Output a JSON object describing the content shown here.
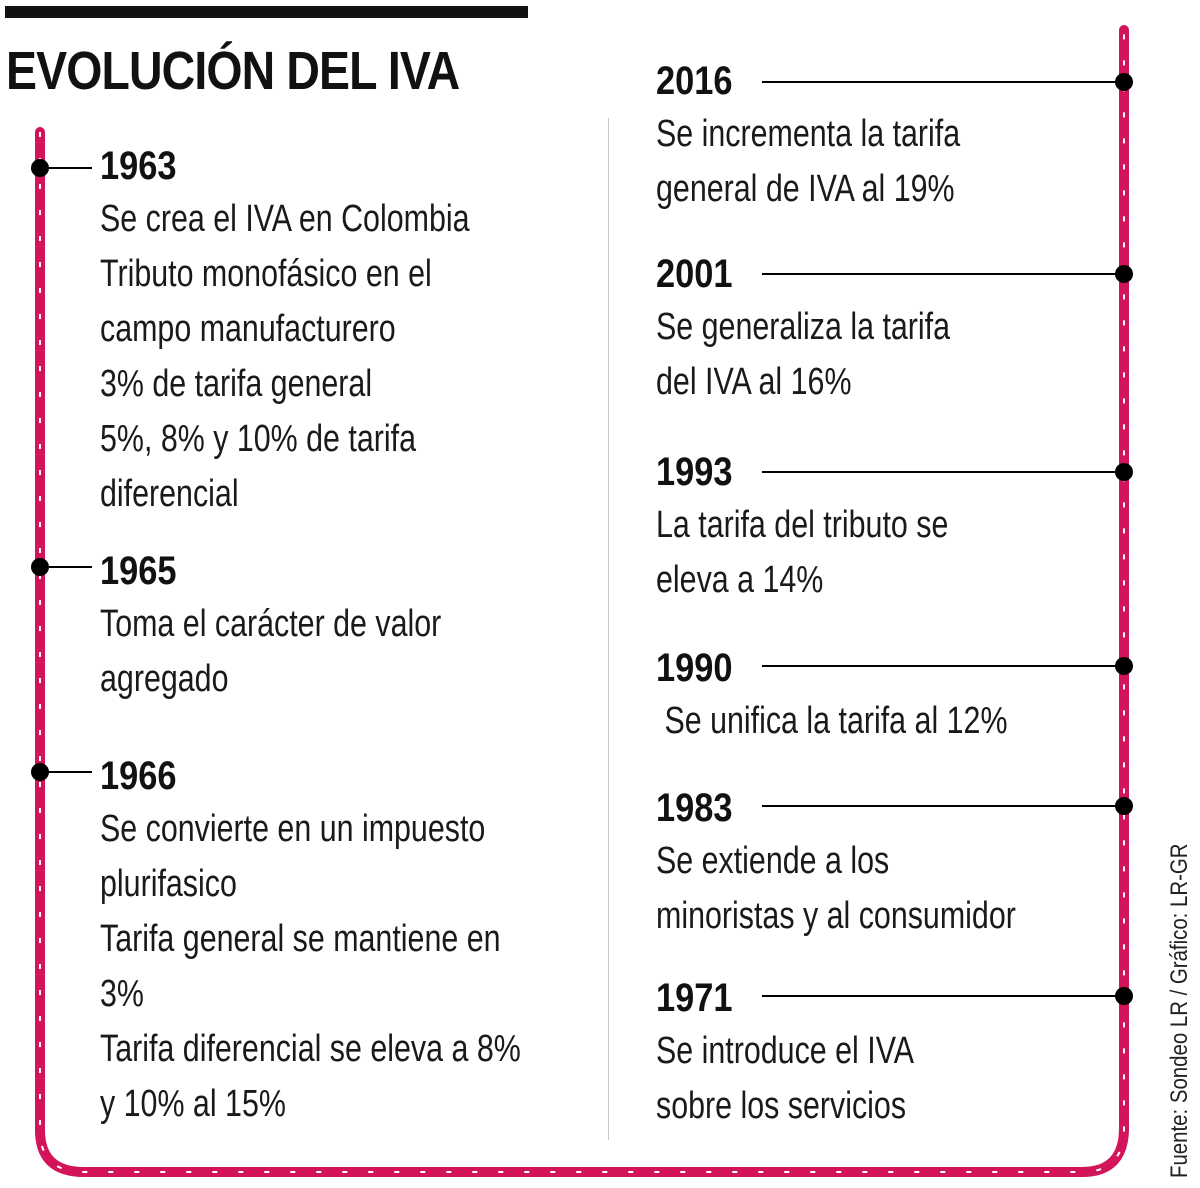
{
  "title": "EVOLUCIÓN DEL IVA",
  "colors": {
    "accent": "#d4145a",
    "text": "#1a1a1a",
    "dot": "#000000"
  },
  "left_events": [
    {
      "year": "1963",
      "lines": [
        "Se crea el IVA en Colombia",
        "Tributo monofásico en el",
        "campo manufacturero",
        "3% de tarifa general",
        "5%, 8% y 10% de tarifa",
        "diferencial"
      ]
    },
    {
      "year": "1965",
      "lines": [
        "Toma el carácter de valor",
        "agregado"
      ]
    },
    {
      "year": "1966",
      "lines": [
        "Se convierte en un impuesto",
        "plurifasico",
        "Tarifa general se mantiene en",
        "3%",
        "Tarifa diferencial se eleva a 8%",
        "y 10% al 15%"
      ]
    }
  ],
  "right_events": [
    {
      "year": "2016",
      "lines": [
        "Se incrementa la tarifa",
        "general de IVA al 19%"
      ]
    },
    {
      "year": "2001",
      "lines": [
        "Se generaliza la tarifa",
        "del IVA al 16%"
      ]
    },
    {
      "year": "1993",
      "lines": [
        "La tarifa del tributo se",
        "eleva a 14%"
      ]
    },
    {
      "year": "1990",
      "lines": [
        " Se unifica la tarifa al 12%"
      ]
    },
    {
      "year": "1983",
      "lines": [
        "Se extiende a los",
        "minoristas y al consumidor"
      ]
    },
    {
      "year": "1971",
      "lines": [
        "Se introduce el IVA",
        "sobre los servicios"
      ]
    }
  ],
  "source": "Fuente: Sondeo LR / Gráfico: LR-GR"
}
